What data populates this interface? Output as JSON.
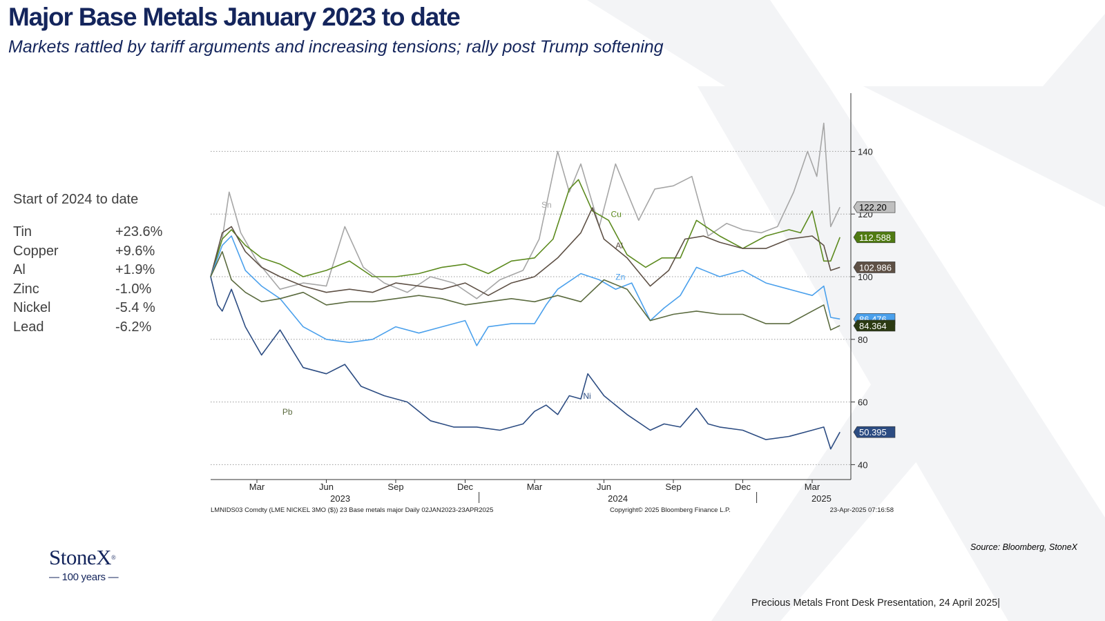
{
  "header": {
    "title": "Major Base Metals January 2023 to date",
    "subtitle": "Markets rattled by tariff arguments and increasing tensions; rally post Trump softening"
  },
  "summary": {
    "heading": "Start of 2024 to date",
    "rows": [
      {
        "metal": "Tin",
        "change": "+23.6%"
      },
      {
        "metal": "Copper",
        "change": "+9.6%"
      },
      {
        "metal": "Al",
        "change": "+1.9%"
      },
      {
        "metal": "Zinc",
        "change": "-1.0%"
      },
      {
        "metal": "Nickel",
        "change": "-5.4 %"
      },
      {
        "metal": "Lead",
        "change": "-6.2%"
      }
    ]
  },
  "source": "Source: Bloomberg, StoneX",
  "footer": "Precious Metals Front Desk Presentation, 24 April 2025|",
  "logo": {
    "name": "StoneX",
    "registered": "®",
    "tagline": "— 100 years —"
  },
  "colors": {
    "brand": "#14255c"
  },
  "chart_data": {
    "type": "line",
    "ylim": [
      35,
      155
    ],
    "yticks": [
      40,
      60,
      80,
      100,
      120,
      140
    ],
    "xlim": [
      0,
      27.7
    ],
    "month_ticks": [
      {
        "label": "Mar",
        "x": 2
      },
      {
        "label": "Jun",
        "x": 5
      },
      {
        "label": "Sep",
        "x": 8
      },
      {
        "label": "Dec",
        "x": 11
      },
      {
        "label": "Mar",
        "x": 14
      },
      {
        "label": "Jun",
        "x": 17
      },
      {
        "label": "Sep",
        "x": 20
      },
      {
        "label": "Dec",
        "x": 23
      },
      {
        "label": "Mar",
        "x": 26
      }
    ],
    "year_ticks": [
      {
        "label": "2023",
        "x": 5.6
      },
      {
        "label": "2024",
        "x": 17.6
      },
      {
        "label": "2025",
        "x": 26.4
      }
    ],
    "year_separators": [
      11.6,
      23.6
    ],
    "footer_left": "LMNIDS03 Comdty (LME NICKEL    3MO ($)) 23 Base metals major  Daily 02JAN2023-23APR2025",
    "footer_center": "Copyright© 2025 Bloomberg Finance L.P.",
    "footer_right": "23-Apr-2025 07:16:58",
    "series": [
      {
        "name": "Sn",
        "color": "#a6a6a6",
        "end_label": "122.20",
        "label_bg": "#bfbfbf",
        "label_fg": "#000000",
        "x": [
          0,
          0.5,
          0.8,
          1.3,
          2,
          3,
          4,
          5,
          5.8,
          6.6,
          7.5,
          8.5,
          9.5,
          10.5,
          11.5,
          12.5,
          13.5,
          14.2,
          15,
          15.5,
          16,
          16.8,
          17.5,
          18.5,
          19.2,
          20,
          20.8,
          21.5,
          22.3,
          23,
          23.8,
          24.5,
          25.2,
          25.8,
          26.2,
          26.5,
          26.8,
          27.2
        ],
        "values": [
          100,
          112,
          127,
          114,
          105,
          96,
          98,
          97,
          116,
          103,
          98,
          95,
          100,
          98,
          93,
          99,
          102,
          112,
          140,
          127,
          136,
          116,
          136,
          118,
          128,
          129,
          132,
          113,
          117,
          115,
          114,
          116,
          127,
          140,
          132,
          149,
          116,
          122.2
        ]
      },
      {
        "name": "Cu",
        "color": "#5c8a1e",
        "end_label": "112.588",
        "label_bg": "#4f7a12",
        "label_fg": "#ffffff",
        "x": [
          0,
          0.5,
          0.9,
          1.5,
          2.2,
          3,
          4,
          5,
          6,
          7,
          8,
          9,
          10,
          11,
          12,
          13,
          14,
          14.8,
          15.5,
          15.9,
          16.5,
          17.2,
          18,
          18.8,
          19.5,
          20.3,
          21,
          22,
          23,
          24,
          25,
          25.5,
          26,
          26.5,
          26.8,
          27.2
        ],
        "values": [
          100,
          112,
          115,
          110,
          106,
          104,
          100,
          102,
          105,
          100,
          100,
          101,
          103,
          104,
          101,
          105,
          106,
          112,
          128,
          131,
          121,
          118,
          107,
          103,
          106,
          106,
          118,
          113,
          109,
          113,
          115,
          114,
          121,
          105,
          105,
          112.6
        ]
      },
      {
        "name": "Al",
        "color": "#5e5045",
        "end_label": "102.986",
        "label_bg": "#5e5045",
        "label_fg": "#ffffff",
        "x": [
          0,
          0.5,
          0.9,
          1.5,
          2.2,
          3,
          4,
          5,
          6,
          7,
          8,
          9,
          10,
          11,
          12,
          13,
          14,
          15,
          16,
          16.5,
          17,
          18,
          19,
          19.8,
          20.5,
          21.3,
          22,
          23,
          24,
          25,
          26,
          26.5,
          26.8,
          27.2
        ],
        "values": [
          100,
          114,
          116,
          108,
          103,
          100,
          97,
          95,
          96,
          95,
          98,
          97,
          96,
          98,
          94,
          98,
          100,
          106,
          114,
          122,
          112,
          106,
          97,
          102,
          112,
          113,
          111,
          109,
          109,
          112,
          113,
          110,
          102,
          103
        ]
      },
      {
        "name": "Zn",
        "color": "#4aa0ec",
        "end_label": "86.476",
        "label_bg": "#4aa0ec",
        "label_fg": "#ffffff",
        "x": [
          0,
          0.5,
          0.9,
          1.5,
          2.2,
          3,
          4,
          4.5,
          5,
          6,
          7,
          8,
          9,
          10,
          11,
          11.5,
          12,
          13,
          14,
          14.5,
          15,
          16,
          16.8,
          17.5,
          18.2,
          19,
          19.6,
          20.3,
          21,
          22,
          23,
          24,
          25,
          26,
          26.5,
          26.8,
          27.2
        ],
        "values": [
          100,
          110,
          113,
          102,
          97,
          93,
          84,
          82,
          80,
          79,
          80,
          84,
          82,
          84,
          86,
          78,
          84,
          85,
          85,
          91,
          96,
          101,
          99,
          96,
          98,
          86,
          90,
          94,
          103,
          100,
          102,
          98,
          96,
          94,
          97,
          87,
          86.5
        ]
      },
      {
        "name": "Pb",
        "color": "#5a6a3e",
        "end_label": "84.364",
        "label_bg": "#2b3a12",
        "label_fg": "#ffffff",
        "x": [
          0,
          0.5,
          0.9,
          1.5,
          2.2,
          3,
          4,
          5,
          6,
          7,
          8,
          9,
          10,
          11,
          12,
          13,
          14,
          15,
          16,
          17,
          18,
          19,
          20,
          21,
          22,
          23,
          24,
          25,
          26,
          26.5,
          26.8,
          27.2
        ],
        "values": [
          100,
          108,
          99,
          95,
          92,
          93,
          95,
          91,
          92,
          92,
          93,
          94,
          93,
          91,
          92,
          93,
          92,
          94,
          92,
          99,
          96,
          86,
          88,
          89,
          88,
          88,
          85,
          85,
          89,
          91,
          83,
          84.4
        ]
      },
      {
        "name": "Ni",
        "color": "#2c4c82",
        "end_label": "50.395",
        "label_bg": "#2c4c82",
        "label_fg": "#ffffff",
        "x": [
          0,
          0.3,
          0.5,
          0.9,
          1.5,
          2.2,
          3,
          4,
          5,
          5.8,
          6.5,
          7.5,
          8.5,
          9.5,
          10.5,
          11.5,
          12.5,
          13.5,
          14,
          14.5,
          15,
          15.5,
          16,
          16.3,
          17,
          18,
          19,
          19.6,
          20.3,
          21,
          21.5,
          22,
          23,
          24,
          25,
          26,
          26.5,
          26.8,
          27.2
        ],
        "values": [
          100,
          91,
          89,
          96,
          84,
          75,
          83,
          71,
          69,
          72,
          65,
          62,
          60,
          54,
          52,
          52,
          51,
          53,
          57,
          59,
          56,
          62,
          61,
          69,
          62,
          56,
          51,
          53,
          52,
          58,
          53,
          52,
          51,
          48,
          49,
          51,
          52,
          45,
          50.4
        ]
      }
    ],
    "series_labels": [
      {
        "name": "Sn",
        "x": 14.3,
        "y": 122
      },
      {
        "name": "Cu",
        "x": 17.3,
        "y": 119
      },
      {
        "name": "Al",
        "x": 17.5,
        "y": 109
      },
      {
        "name": "Zn",
        "x": 17.5,
        "y": 99
      },
      {
        "name": "Ni",
        "x": 16.1,
        "y": 61
      },
      {
        "name": "Pb",
        "x": 3.1,
        "y": 56
      }
    ]
  }
}
